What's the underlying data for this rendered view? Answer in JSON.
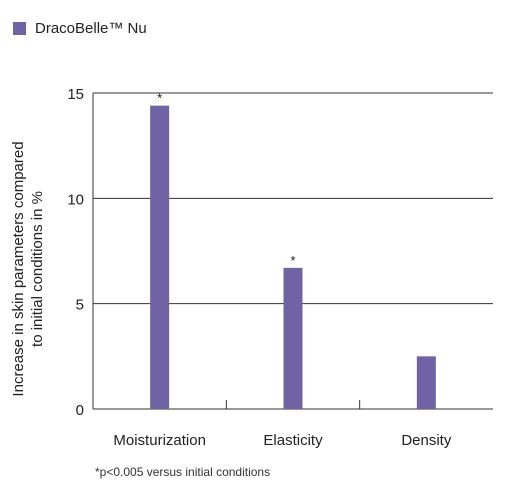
{
  "chart_data": {
    "type": "bar",
    "categories": [
      "Moisturization",
      "Elasticity",
      "Density"
    ],
    "series": [
      {
        "name": "DracoBelle™ Nu",
        "values": [
          14.4,
          6.7,
          2.5
        ],
        "color": "#6f63a5"
      }
    ],
    "title": "",
    "xlabel": "",
    "ylabel": "Increase in skin parameters compared to initial conditions in %",
    "ylim": [
      0,
      15
    ],
    "yticks": [
      0,
      5,
      10,
      15
    ],
    "grid": true,
    "legend_position": "top-left",
    "significance_markers": [
      "*",
      "*",
      ""
    ],
    "footnote": "*p<0.005 versus initial conditions"
  }
}
